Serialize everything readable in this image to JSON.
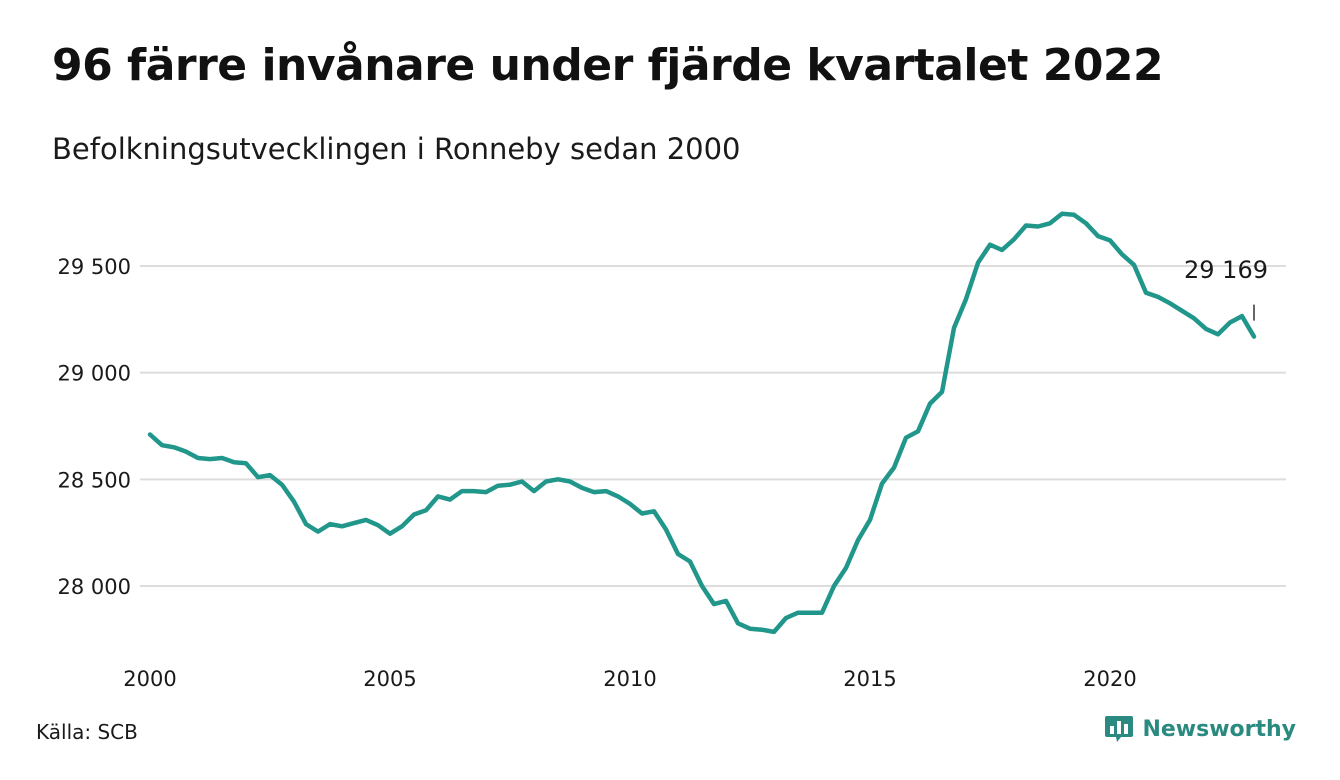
{
  "title": "96 färre invånare under fjärde kvartalet 2022",
  "subtitle": "Befolkningsutvecklingen i Ronneby sedan 2000",
  "source": "Källa: SCB",
  "brand": {
    "name": "Newsworthy",
    "icon": "bar-chart-speech-bubble-icon",
    "color": "#2a8a80"
  },
  "colors": {
    "line": "#21968a",
    "grid": "#dddddd",
    "text": "#1a1a1a"
  },
  "chart_data": {
    "type": "line",
    "title": "96 färre invånare under fjärde kvartalet 2022",
    "subtitle": "Befolkningsutvecklingen i Ronneby sedan 2000",
    "xlabel": "",
    "ylabel": "",
    "xlim": [
      2000,
      2023
    ],
    "ylim": [
      27700,
      29900
    ],
    "grid": "horizontal",
    "legend": "none",
    "x_ticks": [
      2000,
      2005,
      2010,
      2015,
      2020
    ],
    "x_tick_labels": [
      "2000",
      "2005",
      "2010",
      "2015",
      "2020"
    ],
    "y_ticks": [
      28000,
      28500,
      29000,
      29500
    ],
    "y_tick_labels": [
      "28 000",
      "28 500",
      "29 000",
      "29 500"
    ],
    "annotation": {
      "x": 2023.0,
      "y": 29169,
      "label": "29 169"
    },
    "series": [
      {
        "values": [
          [
            2000.0,
            28710
          ],
          [
            2000.25,
            28660
          ],
          [
            2000.5,
            28650
          ],
          [
            2000.75,
            28630
          ],
          [
            2001.0,
            28600
          ],
          [
            2001.25,
            28595
          ],
          [
            2001.5,
            28600
          ],
          [
            2001.75,
            28580
          ],
          [
            2002.0,
            28575
          ],
          [
            2002.25,
            28510
          ],
          [
            2002.5,
            28520
          ],
          [
            2002.75,
            28475
          ],
          [
            2003.0,
            28395
          ],
          [
            2003.25,
            28290
          ],
          [
            2003.5,
            28255
          ],
          [
            2003.75,
            28290
          ],
          [
            2004.0,
            28280
          ],
          [
            2004.25,
            28295
          ],
          [
            2004.5,
            28310
          ],
          [
            2004.75,
            28285
          ],
          [
            2005.0,
            28245
          ],
          [
            2005.25,
            28280
          ],
          [
            2005.5,
            28335
          ],
          [
            2005.75,
            28355
          ],
          [
            2006.0,
            28420
          ],
          [
            2006.25,
            28405
          ],
          [
            2006.5,
            28445
          ],
          [
            2006.75,
            28445
          ],
          [
            2007.0,
            28440
          ],
          [
            2007.25,
            28470
          ],
          [
            2007.5,
            28475
          ],
          [
            2007.75,
            28490
          ],
          [
            2008.0,
            28445
          ],
          [
            2008.25,
            28490
          ],
          [
            2008.5,
            28500
          ],
          [
            2008.75,
            28490
          ],
          [
            2009.0,
            28460
          ],
          [
            2009.25,
            28440
          ],
          [
            2009.5,
            28445
          ],
          [
            2009.75,
            28420
          ],
          [
            2010.0,
            28385
          ],
          [
            2010.25,
            28340
          ],
          [
            2010.5,
            28350
          ],
          [
            2010.75,
            28265
          ],
          [
            2011.0,
            28150
          ],
          [
            2011.25,
            28115
          ],
          [
            2011.5,
            28000
          ],
          [
            2011.75,
            27915
          ],
          [
            2012.0,
            27930
          ],
          [
            2012.25,
            27825
          ],
          [
            2012.5,
            27800
          ],
          [
            2012.75,
            27795
          ],
          [
            2013.0,
            27785
          ],
          [
            2013.25,
            27850
          ],
          [
            2013.5,
            27875
          ],
          [
            2013.75,
            27875
          ],
          [
            2014.0,
            27875
          ],
          [
            2014.25,
            28000
          ],
          [
            2014.5,
            28085
          ],
          [
            2014.75,
            28215
          ],
          [
            2015.0,
            28310
          ],
          [
            2015.25,
            28480
          ],
          [
            2015.5,
            28555
          ],
          [
            2015.75,
            28695
          ],
          [
            2016.0,
            28725
          ],
          [
            2016.25,
            28855
          ],
          [
            2016.5,
            28910
          ],
          [
            2016.75,
            29210
          ],
          [
            2017.0,
            29345
          ],
          [
            2017.25,
            29515
          ],
          [
            2017.5,
            29600
          ],
          [
            2017.75,
            29575
          ],
          [
            2018.0,
            29625
          ],
          [
            2018.25,
            29690
          ],
          [
            2018.5,
            29685
          ],
          [
            2018.75,
            29700
          ],
          [
            2019.0,
            29745
          ],
          [
            2019.25,
            29740
          ],
          [
            2019.5,
            29700
          ],
          [
            2019.75,
            29640
          ],
          [
            2020.0,
            29620
          ],
          [
            2020.25,
            29555
          ],
          [
            2020.5,
            29505
          ],
          [
            2020.75,
            29375
          ],
          [
            2021.0,
            29355
          ],
          [
            2021.25,
            29325
          ],
          [
            2021.5,
            29290
          ],
          [
            2021.75,
            29255
          ],
          [
            2022.0,
            29205
          ],
          [
            2022.25,
            29180
          ],
          [
            2022.5,
            29235
          ],
          [
            2022.75,
            29265
          ],
          [
            2023.0,
            29169
          ]
        ]
      }
    ]
  }
}
